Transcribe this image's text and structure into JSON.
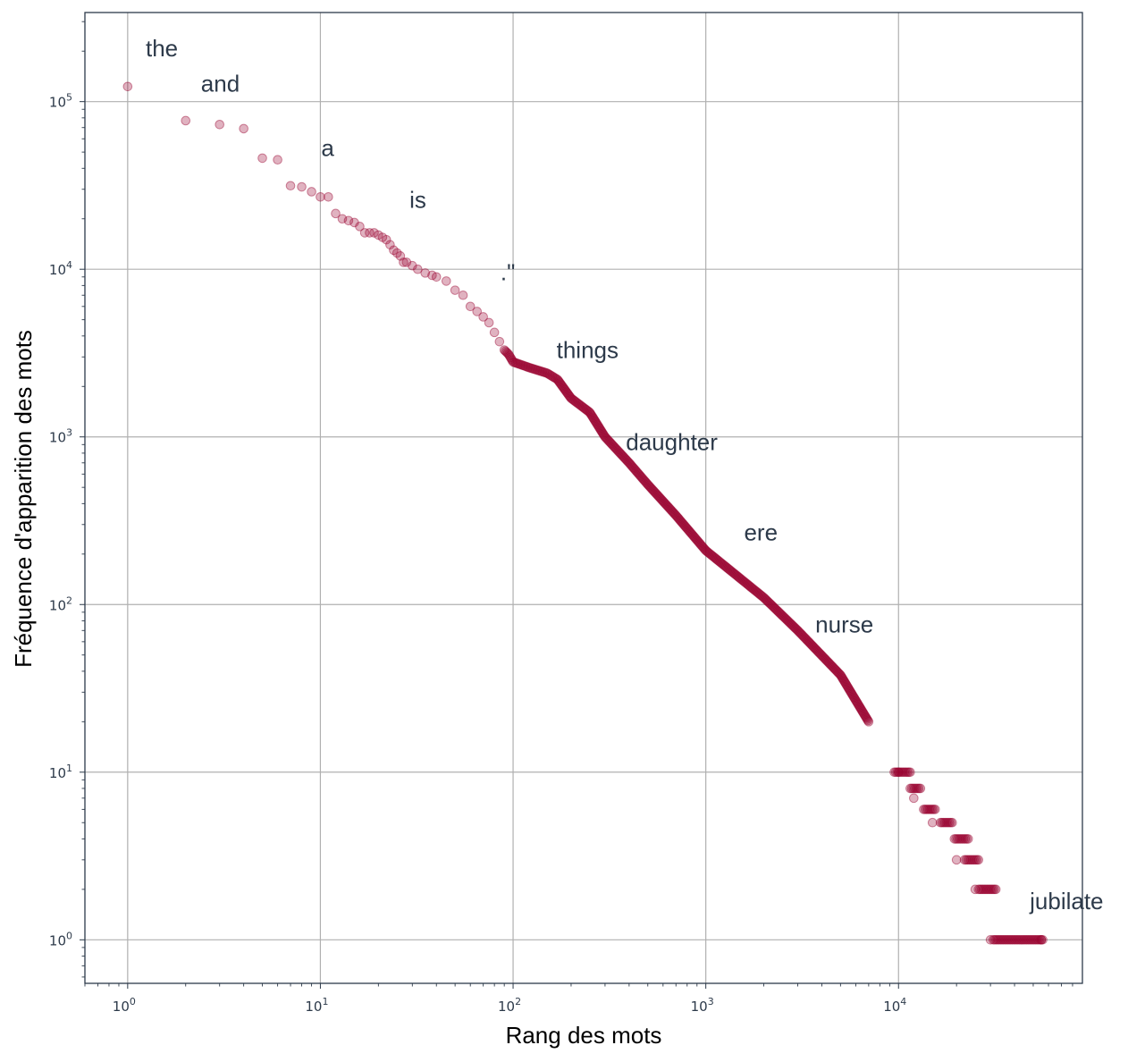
{
  "chart_data": {
    "type": "scatter",
    "title": "",
    "xlabel": "Rang des mots",
    "ylabel": "Fréquence d'apparition des mots",
    "xscale": "log",
    "yscale": "log",
    "xlim": [
      0.6,
      90000
    ],
    "ylim": [
      0.55,
      340000
    ],
    "grid": true,
    "legend": "none",
    "x_ticks": [
      {
        "value": 1,
        "label": "10",
        "exp": "0"
      },
      {
        "value": 10,
        "label": "10",
        "exp": "1"
      },
      {
        "value": 100,
        "label": "10",
        "exp": "2"
      },
      {
        "value": 1000,
        "label": "10",
        "exp": "3"
      },
      {
        "value": 10000,
        "label": "10",
        "exp": "4"
      }
    ],
    "y_ticks": [
      {
        "value": 1,
        "label": "10",
        "exp": "0"
      },
      {
        "value": 10,
        "label": "10",
        "exp": "1"
      },
      {
        "value": 100,
        "label": "10",
        "exp": "2"
      },
      {
        "value": 1000,
        "label": "10",
        "exp": "3"
      },
      {
        "value": 10000,
        "label": "10",
        "exp": "4"
      },
      {
        "value": 100000,
        "label": "10",
        "exp": "5"
      }
    ],
    "marker_color": "#98002e",
    "annotations": [
      {
        "text": "the",
        "x": 1.24,
        "y": 208000
      },
      {
        "text": "and",
        "x": 2.4,
        "y": 128000
      },
      {
        "text": "a",
        "x": 10.1,
        "y": 53000
      },
      {
        "text": "is",
        "x": 29,
        "y": 26000
      },
      {
        "text": ".\"",
        "x": 86,
        "y": 9600
      },
      {
        "text": "things",
        "x": 168,
        "y": 3300
      },
      {
        "text": "daughter",
        "x": 385,
        "y": 930
      },
      {
        "text": "ere",
        "x": 1580,
        "y": 270
      },
      {
        "text": "nurse",
        "x": 3700,
        "y": 76
      },
      {
        "text": "jubilate",
        "x": 48000,
        "y": 1.7
      }
    ],
    "series": [
      {
        "points": [
          [
            1,
            123000
          ],
          [
            2,
            77000
          ],
          [
            3,
            73000
          ],
          [
            4,
            69000
          ],
          [
            5,
            46000
          ],
          [
            6,
            45000
          ],
          [
            7,
            31500
          ],
          [
            8,
            31000
          ],
          [
            9,
            29000
          ],
          [
            10,
            27000
          ],
          [
            11,
            27000
          ],
          [
            12,
            21500
          ],
          [
            13,
            20000
          ],
          [
            14,
            19500
          ],
          [
            15,
            19000
          ],
          [
            16,
            18000
          ],
          [
            17,
            16500
          ],
          [
            18,
            16500
          ],
          [
            19,
            16500
          ],
          [
            20,
            16000
          ],
          [
            21,
            15500
          ],
          [
            22,
            15000
          ],
          [
            23,
            14000
          ],
          [
            24,
            13000
          ],
          [
            25,
            12500
          ],
          [
            26,
            12000
          ],
          [
            27,
            11000
          ],
          [
            28,
            11000
          ],
          [
            30,
            10500
          ],
          [
            32,
            10000
          ],
          [
            35,
            9500
          ],
          [
            38,
            9200
          ],
          [
            40,
            9000
          ],
          [
            45,
            8500
          ],
          [
            50,
            7500
          ],
          [
            55,
            7000
          ],
          [
            60,
            6000
          ],
          [
            65,
            5600
          ],
          [
            70,
            5200
          ],
          [
            75,
            4800
          ],
          [
            80,
            4200
          ],
          [
            85,
            3700
          ],
          [
            90,
            3300
          ],
          [
            95,
            3100
          ],
          [
            100,
            2800
          ],
          [
            120,
            2600
          ],
          [
            150,
            2400
          ],
          [
            170,
            2200
          ],
          [
            200,
            1700
          ],
          [
            250,
            1400
          ],
          [
            300,
            1000
          ],
          [
            400,
            700
          ],
          [
            500,
            520
          ],
          [
            700,
            340
          ],
          [
            1000,
            210
          ],
          [
            2000,
            110
          ],
          [
            3000,
            70
          ],
          [
            5000,
            38
          ],
          [
            7000,
            20
          ],
          [
            10000,
            10
          ],
          [
            12000,
            7
          ],
          [
            15000,
            5
          ],
          [
            20000,
            3
          ],
          [
            25000,
            2
          ],
          [
            30000,
            1
          ],
          [
            55000,
            1
          ]
        ],
        "dense_segments": [
          [
            100,
            2800,
            55000,
            1
          ]
        ],
        "plateaus": [
          [
            9500,
            11500,
            10
          ],
          [
            11500,
            13000,
            8
          ],
          [
            13500,
            15500,
            6
          ],
          [
            16500,
            19000,
            5
          ],
          [
            19500,
            23000,
            4
          ],
          [
            22000,
            26000,
            3
          ],
          [
            26000,
            32000,
            2
          ],
          [
            31000,
            56000,
            1
          ]
        ]
      }
    ]
  }
}
